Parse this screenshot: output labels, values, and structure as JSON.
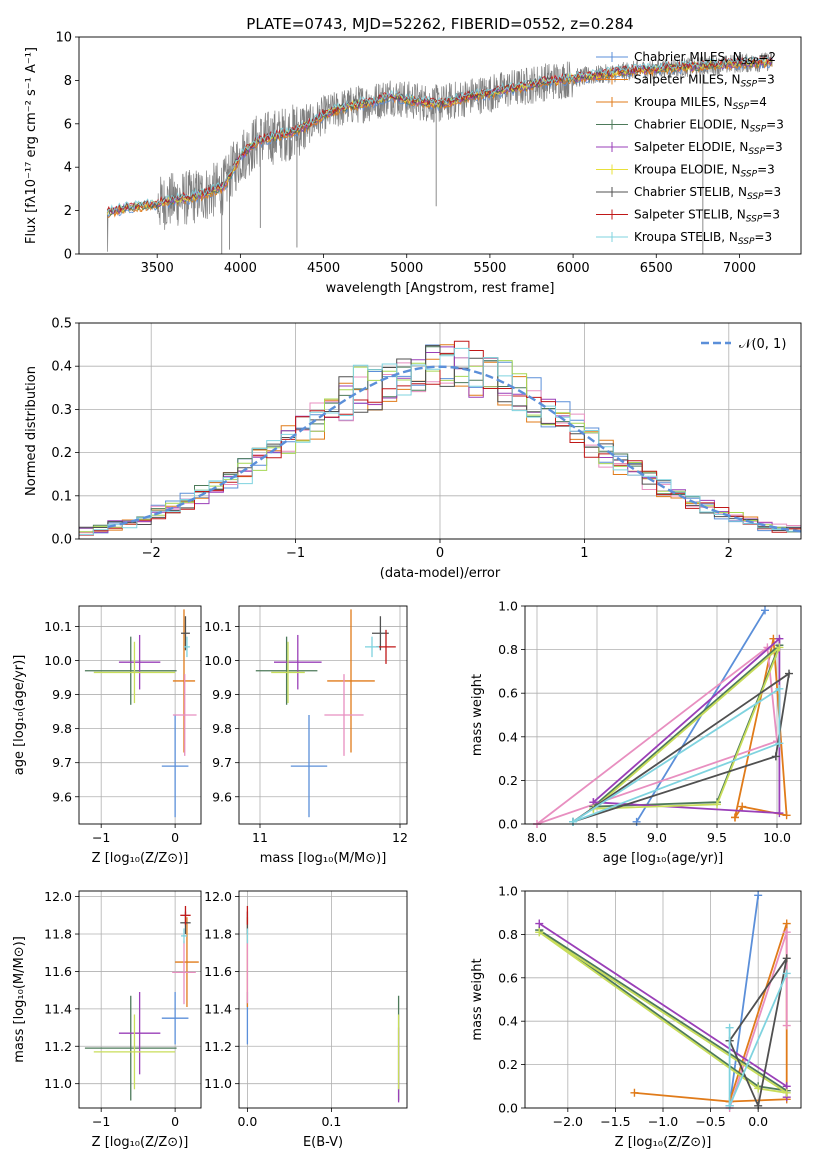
{
  "figure": {
    "title": "PLATE=0743, MJD=52262, FIBERID=0552, z=0.284"
  },
  "colors": {
    "data_gray": "#7f7f7f",
    "normal_curve": "#5b8fd9",
    "models": [
      "#5b8fd9",
      "#e07b1a",
      "#e07b1a",
      "#4d7a5a",
      "#9a3fb8",
      "#c8dd5a",
      "#505050",
      "#c01818",
      "#7fd3df",
      "#e88fc0",
      "#a6d854",
      "#7f7f7f"
    ]
  },
  "chart_data": [
    {
      "id": "spectrum",
      "type": "line",
      "title": "PLATE=0743, MJD=52262, FIBERID=0552, z=0.284",
      "xlabel": "wavelength [Angstrom, rest frame]",
      "ylabel": "Flux [fλ10⁻¹⁷ erg cm⁻² s⁻¹ A⁻¹]",
      "xlim": [
        3030,
        7370
      ],
      "ylim": [
        0,
        10
      ],
      "xticks": [
        3500,
        4000,
        4500,
        5000,
        5500,
        6000,
        6500,
        7000
      ],
      "yticks": [
        0,
        2,
        4,
        6,
        8,
        10
      ],
      "grid": false,
      "legend_position": "top-right",
      "continuum_knots": {
        "wavelength": [
          3200,
          3300,
          3400,
          3500,
          3600,
          3700,
          3800,
          3900,
          3950,
          4000,
          4100,
          4200,
          4300,
          4400,
          4500,
          4600,
          4700,
          4800,
          4900,
          5000,
          5100,
          5200,
          5300,
          5400,
          5500,
          5600,
          5700,
          5800,
          5900,
          6000,
          6100,
          6200,
          6300,
          6400,
          6500,
          6600,
          6700,
          6800,
          6900,
          7000,
          7100,
          7200
        ],
        "flux": [
          1.9,
          2.1,
          2.2,
          2.3,
          2.5,
          2.6,
          2.8,
          3.1,
          3.8,
          4.5,
          5.2,
          5.4,
          5.6,
          5.9,
          6.4,
          6.7,
          6.9,
          7.0,
          7.3,
          7.1,
          7.0,
          6.9,
          7.1,
          7.3,
          7.4,
          7.6,
          7.7,
          7.9,
          8.0,
          8.1,
          8.2,
          8.3,
          8.4,
          8.5,
          8.5,
          8.6,
          8.6,
          8.7,
          8.7,
          8.8,
          8.8,
          8.9
        ]
      },
      "series": [
        {
          "name": "Chabrier MILES, N",
          "sub": "SSP",
          "suffix": "=2",
          "color": "#5b8fd9"
        },
        {
          "name": "Salpeter MILES, N",
          "sub": "SSP",
          "suffix": "=3",
          "color": "#e07b1a"
        },
        {
          "name": "Kroupa MILES, N",
          "sub": "SSP",
          "suffix": "=4",
          "color": "#e07b1a"
        },
        {
          "name": "Chabrier ELODIE, N",
          "sub": "SSP",
          "suffix": "=3",
          "color": "#4d7a5a"
        },
        {
          "name": "Salpeter ELODIE, N",
          "sub": "SSP",
          "suffix": "=3",
          "color": "#9a3fb8"
        },
        {
          "name": "Kroupa ELODIE, N",
          "sub": "SSP",
          "suffix": "=3",
          "color": "#e8e03a"
        },
        {
          "name": "Chabrier STELIB, N",
          "sub": "SSP",
          "suffix": "=3",
          "color": "#505050"
        },
        {
          "name": "Salpeter STELIB, N",
          "sub": "SSP",
          "suffix": "=3",
          "color": "#c01818"
        },
        {
          "name": "Kroupa STELIB, N",
          "sub": "SSP",
          "suffix": "=3",
          "color": "#7fd3df"
        }
      ]
    },
    {
      "id": "residuals",
      "type": "line",
      "xlabel": "(data-model)/error",
      "ylabel": "Normed distribution",
      "xlim": [
        -2.5,
        2.5
      ],
      "ylim": [
        0,
        0.5
      ],
      "xticks": [
        -2,
        -1,
        0,
        1,
        2
      ],
      "yticks": [
        0.0,
        0.1,
        0.2,
        0.3,
        0.4,
        0.5
      ],
      "grid": true,
      "legend_position": "top-right",
      "normal_label": "𝒩(0, 1)",
      "bin_width": 0.1,
      "histogram_series": 9
    },
    {
      "id": "age_vs_Z",
      "type": "scatter",
      "xlabel": "Z [log₁₀(Z/Z⊙)]",
      "ylabel": "age  [log₁₀(age/yr)]",
      "xlim": [
        -1.3,
        0.35
      ],
      "ylim": [
        9.52,
        10.16
      ],
      "xticks": [
        -1,
        0
      ],
      "yticks": [
        9.6,
        9.7,
        9.8,
        9.9,
        10.0,
        10.1
      ],
      "grid": true,
      "points": [
        {
          "x": 0.0,
          "y": 9.69,
          "xerr": 0.18,
          "yerr": 0.15,
          "color": "#5b8fd9"
        },
        {
          "x": 0.12,
          "y": 9.94,
          "xerr": 0.15,
          "yerr": 0.21,
          "color": "#e07b1a"
        },
        {
          "x": 0.13,
          "y": 9.84,
          "xerr": 0.16,
          "yerr": 0.12,
          "color": "#e88fc0"
        },
        {
          "x": -0.6,
          "y": 9.97,
          "xerr": 0.62,
          "yerr": 0.1,
          "color": "#4d7a5a"
        },
        {
          "x": -0.48,
          "y": 9.995,
          "xerr": 0.28,
          "yerr": 0.08,
          "color": "#9a3fb8"
        },
        {
          "x": -0.55,
          "y": 9.965,
          "xerr": 0.55,
          "yerr": 0.09,
          "color": "#c8dd5a"
        },
        {
          "x": 0.14,
          "y": 10.08,
          "xerr": 0.06,
          "yerr": 0.05,
          "color": "#505050"
        },
        {
          "x": 0.16,
          "y": 10.04,
          "xerr": 0.04,
          "yerr": 0.03,
          "color": "#7fd3df"
        }
      ]
    },
    {
      "id": "age_vs_mass",
      "type": "scatter",
      "xlabel": "mass [log₁₀(M/M⊙)]",
      "ylabel": "",
      "xlim": [
        10.85,
        12.05
      ],
      "ylim": [
        9.52,
        10.16
      ],
      "xticks": [
        11,
        12
      ],
      "yticks": [
        9.6,
        9.7,
        9.8,
        9.9,
        10.0,
        10.1
      ],
      "grid": true,
      "points": [
        {
          "x": 11.35,
          "y": 9.69,
          "xerr": 0.13,
          "yerr": 0.15,
          "color": "#5b8fd9"
        },
        {
          "x": 11.65,
          "y": 9.94,
          "xerr": 0.17,
          "yerr": 0.21,
          "color": "#e07b1a"
        },
        {
          "x": 11.6,
          "y": 9.84,
          "xerr": 0.14,
          "yerr": 0.12,
          "color": "#e88fc0"
        },
        {
          "x": 11.19,
          "y": 9.97,
          "xerr": 0.22,
          "yerr": 0.1,
          "color": "#4d7a5a"
        },
        {
          "x": 11.27,
          "y": 9.995,
          "xerr": 0.17,
          "yerr": 0.08,
          "color": "#9a3fb8"
        },
        {
          "x": 11.2,
          "y": 9.965,
          "xerr": 0.12,
          "yerr": 0.09,
          "color": "#c8dd5a"
        },
        {
          "x": 11.86,
          "y": 10.08,
          "xerr": 0.06,
          "yerr": 0.05,
          "color": "#505050"
        },
        {
          "x": 11.9,
          "y": 10.04,
          "xerr": 0.07,
          "yerr": 0.05,
          "color": "#c01818"
        },
        {
          "x": 11.8,
          "y": 10.04,
          "xerr": 0.05,
          "yerr": 0.03,
          "color": "#7fd3df"
        }
      ]
    },
    {
      "id": "weight_vs_age",
      "type": "line",
      "xlabel": "age  [log₁₀(age/yr)]",
      "ylabel": "mass weight",
      "xlim": [
        7.9,
        10.2
      ],
      "ylim": [
        0,
        1.0
      ],
      "xticks": [
        8.0,
        8.5,
        9.0,
        9.5,
        10.0
      ],
      "yticks": [
        0.0,
        0.2,
        0.4,
        0.6,
        0.8,
        1.0
      ],
      "grid": true,
      "series": [
        {
          "color": "#5b8fd9",
          "x": [
            8.83,
            9.9
          ],
          "y": [
            0.01,
            0.98
          ]
        },
        {
          "color": "#e07b1a",
          "x": [
            9.65,
            9.97,
            10.08,
            9.71,
            9.65
          ],
          "y": [
            0.03,
            0.85,
            0.04,
            0.08,
            0.03
          ]
        },
        {
          "color": "#e88fc0",
          "x": [
            8.0,
            9.92,
            10.0,
            8.0
          ],
          "y": [
            0.0,
            0.81,
            0.38,
            0.0
          ]
        },
        {
          "color": "#4d7a5a",
          "x": [
            8.47,
            9.5,
            10.02,
            8.47
          ],
          "y": [
            0.08,
            0.1,
            0.82,
            0.08
          ]
        },
        {
          "color": "#9a3fb8",
          "x": [
            8.47,
            10.02,
            10.02,
            8.47
          ],
          "y": [
            0.1,
            0.85,
            0.05,
            0.1
          ]
        },
        {
          "color": "#c8dd5a",
          "x": [
            8.47,
            9.5,
            10.02,
            8.47
          ],
          "y": [
            0.07,
            0.09,
            0.81,
            0.07
          ]
        },
        {
          "color": "#505050",
          "x": [
            8.3,
            9.99,
            10.1,
            8.3
          ],
          "y": [
            0.01,
            0.31,
            0.69,
            0.01
          ]
        },
        {
          "color": "#7fd3df",
          "x": [
            8.3,
            10.02,
            10.02,
            8.3
          ],
          "y": [
            0.01,
            0.37,
            0.62,
            0.01
          ]
        }
      ]
    },
    {
      "id": "mass_vs_Z",
      "type": "scatter",
      "xlabel": "Z [log₁₀(Z/Z⊙)]",
      "ylabel": "mass [log₁₀(M/M⊙)]",
      "xlim": [
        -1.3,
        0.35
      ],
      "ylim": [
        10.87,
        12.03
      ],
      "xticks": [
        -1,
        0
      ],
      "yticks": [
        11.0,
        11.2,
        11.4,
        11.6,
        11.8,
        12.0
      ],
      "grid": true,
      "points": [
        {
          "x": 0.0,
          "y": 11.35,
          "xerr": 0.18,
          "yerr": 0.14,
          "color": "#5b8fd9"
        },
        {
          "x": 0.16,
          "y": 11.65,
          "xerr": 0.16,
          "yerr": 0.24,
          "color": "#e07b1a"
        },
        {
          "x": 0.12,
          "y": 11.595,
          "xerr": 0.16,
          "yerr": 0.17,
          "color": "#e88fc0"
        },
        {
          "x": -0.6,
          "y": 11.19,
          "xerr": 0.62,
          "yerr": 0.28,
          "color": "#4d7a5a"
        },
        {
          "x": -0.48,
          "y": 11.27,
          "xerr": 0.28,
          "yerr": 0.22,
          "color": "#9a3fb8"
        },
        {
          "x": -0.55,
          "y": 11.17,
          "xerr": 0.55,
          "yerr": 0.2,
          "color": "#c8dd5a"
        },
        {
          "x": 0.14,
          "y": 11.86,
          "xerr": 0.07,
          "yerr": 0.06,
          "color": "#505050"
        },
        {
          "x": 0.14,
          "y": 11.9,
          "xerr": 0.07,
          "yerr": 0.05,
          "color": "#c01818"
        },
        {
          "x": 0.12,
          "y": 11.79,
          "xerr": 0.04,
          "yerr": 0.04,
          "color": "#7fd3df"
        }
      ]
    },
    {
      "id": "mass_vs_EBV",
      "type": "scatter",
      "xlabel": "E(B-V)",
      "ylabel": "",
      "xlim": [
        -0.01,
        0.19
      ],
      "ylim": [
        10.87,
        12.03
      ],
      "xticks": [
        0.0,
        0.1
      ],
      "yticks": [
        11.0,
        11.2,
        11.4,
        11.6,
        11.8,
        12.0
      ],
      "grid": true,
      "points": [
        {
          "x": 0.0,
          "y": 11.35,
          "xerr": 0.0,
          "yerr": 0.14,
          "color": "#5b8fd9"
        },
        {
          "x": 0.0,
          "y": 11.65,
          "xerr": 0.0,
          "yerr": 0.24,
          "color": "#e07b1a"
        },
        {
          "x": 0.0,
          "y": 11.6,
          "xerr": 0.0,
          "yerr": 0.17,
          "color": "#e88fc0"
        },
        {
          "x": 0.18,
          "y": 11.19,
          "xerr": 0.0,
          "yerr": 0.28,
          "color": "#4d7a5a"
        },
        {
          "x": 0.18,
          "y": 11.1,
          "xerr": 0.0,
          "yerr": 0.2,
          "color": "#9a3fb8"
        },
        {
          "x": 0.18,
          "y": 11.17,
          "xerr": 0.0,
          "yerr": 0.2,
          "color": "#c8dd5a"
        },
        {
          "x": 0.0,
          "y": 11.86,
          "xerr": 0.0,
          "yerr": 0.06,
          "color": "#505050"
        },
        {
          "x": 0.0,
          "y": 11.9,
          "xerr": 0.0,
          "yerr": 0.05,
          "color": "#c01818"
        },
        {
          "x": 0.0,
          "y": 11.79,
          "xerr": 0.0,
          "yerr": 0.04,
          "color": "#7fd3df"
        }
      ]
    },
    {
      "id": "weight_vs_Z",
      "type": "line",
      "xlabel": "Z [log₁₀(Z/Z⊙)]",
      "ylabel": "mass weight",
      "xlim": [
        -2.45,
        0.45
      ],
      "ylim": [
        0,
        1.0
      ],
      "xticks": [
        -2.0,
        -1.5,
        -1.0,
        -0.5,
        0.0
      ],
      "yticks": [
        0.0,
        0.2,
        0.4,
        0.6,
        0.8,
        1.0
      ],
      "grid": true,
      "series": [
        {
          "color": "#5b8fd9",
          "x": [
            -0.3,
            0.0,
            -0.3
          ],
          "y": [
            0.01,
            0.98,
            0.01
          ]
        },
        {
          "color": "#e07b1a",
          "x": [
            -1.3,
            -0.3,
            0.3,
            0.3,
            -0.3
          ],
          "y": [
            0.07,
            0.03,
            0.85,
            0.04,
            0.03
          ]
        },
        {
          "color": "#e88fc0",
          "x": [
            -0.3,
            0.3,
            0.3
          ],
          "y": [
            0.0,
            0.81,
            0.38
          ]
        },
        {
          "color": "#4d7a5a",
          "x": [
            -2.3,
            0.0,
            0.3,
            -2.3
          ],
          "y": [
            0.82,
            0.1,
            0.08,
            0.82
          ]
        },
        {
          "color": "#9a3fb8",
          "x": [
            -2.3,
            0.3,
            0.3
          ],
          "y": [
            0.85,
            0.1,
            0.05
          ]
        },
        {
          "color": "#c8dd5a",
          "x": [
            -2.3,
            0.0,
            0.3,
            -2.3
          ],
          "y": [
            0.81,
            0.09,
            0.07,
            0.81
          ]
        },
        {
          "color": "#505050",
          "x": [
            -0.3,
            0.0,
            0.3,
            -0.3
          ],
          "y": [
            0.31,
            0.01,
            0.69,
            0.31
          ]
        },
        {
          "color": "#7fd3df",
          "x": [
            -0.3,
            -0.3,
            0.3
          ],
          "y": [
            0.37,
            0.01,
            0.62
          ]
        }
      ]
    }
  ]
}
